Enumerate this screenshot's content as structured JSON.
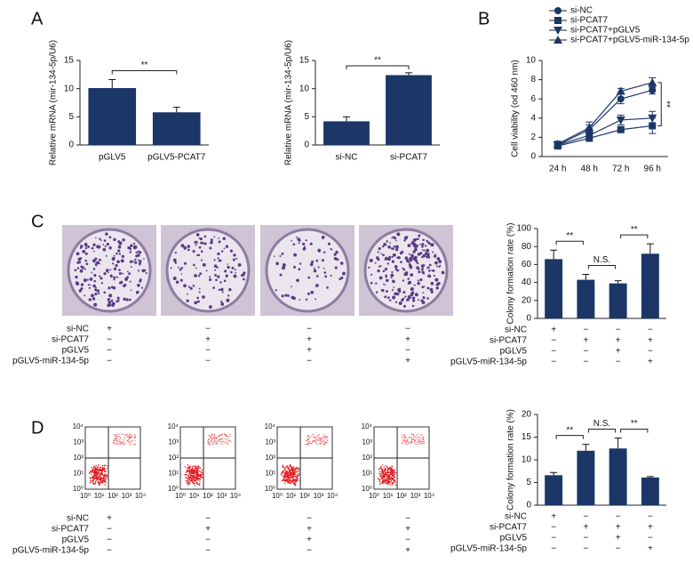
{
  "panel_labels": [
    "A",
    "B",
    "C",
    "D"
  ],
  "flow_axis_ticks": [
    "10⁰",
    "10¹",
    "10²",
    "10³",
    "10⁴"
  ],
  "image_conditions": [
    {
      "labels": [
        "si-NC",
        "si-PCAT7",
        "pGLV5",
        "pGLV5-miR-134-5p"
      ],
      "signs": [
        [
          "+",
          "−",
          "−",
          "−"
        ],
        [
          "−",
          "+",
          "+",
          "+"
        ],
        [
          "−",
          "−",
          "+",
          "−"
        ],
        [
          "−",
          "−",
          "−",
          "+"
        ]
      ]
    },
    {
      "labels": [
        "si-NC",
        "si-PCAT7",
        "pGLV5",
        "pGLV5-miR-134-5p"
      ],
      "signs": [
        [
          "+",
          "−",
          "−",
          "−"
        ],
        [
          "−",
          "+",
          "+",
          "+"
        ],
        [
          "−",
          "−",
          "+",
          "−"
        ],
        [
          "−",
          "−",
          "−",
          "+"
        ]
      ]
    }
  ],
  "chart_data": [
    {
      "type": "bar",
      "ylabel": "Relative mRNA (mir-134-5p/U6)",
      "categories": [
        "pGLV5",
        "pGLV5-PCAT7"
      ],
      "values": [
        10.1,
        5.8
      ],
      "errors": [
        1.5,
        0.9
      ],
      "color": "#1b3667",
      "ylim": [
        0,
        15
      ],
      "yticks": [
        0,
        5,
        10,
        15
      ],
      "annotations": [
        {
          "text": "**",
          "between": [
            0,
            1
          ]
        }
      ]
    },
    {
      "type": "bar",
      "ylabel": "Relative mRNA (mir-134-5p/U6)",
      "categories": [
        "si-NC",
        "si-PCAT7"
      ],
      "values": [
        4.2,
        12.4
      ],
      "errors": [
        0.8,
        0.4
      ],
      "color": "#1b3667",
      "ylim": [
        0,
        15
      ],
      "yticks": [
        0,
        5,
        10,
        15
      ],
      "annotations": [
        {
          "text": "**",
          "between": [
            0,
            1
          ]
        }
      ]
    },
    {
      "type": "line",
      "ylabel": "Cell viability (od 460 nm)",
      "categories": [
        "24 h",
        "48 h",
        "72 h",
        "96 h"
      ],
      "series": [
        {
          "name": "si-NC",
          "marker": "circle",
          "color": "#1b3667",
          "values": [
            1.2,
            2.8,
            6.0,
            6.9
          ],
          "errors": [
            0.3,
            0.5,
            0.5,
            0.4
          ]
        },
        {
          "name": "si-PCAT7",
          "marker": "square",
          "color": "#1b3667",
          "values": [
            1.1,
            1.9,
            2.8,
            3.2
          ],
          "errors": [
            0.2,
            0.2,
            0.3,
            0.8
          ]
        },
        {
          "name": "si-PCAT7+pGLV5",
          "marker": "triangle-down",
          "color": "#1b3667",
          "values": [
            1.2,
            2.2,
            3.8,
            4.0
          ],
          "errors": [
            0.2,
            0.3,
            0.5,
            0.7
          ]
        },
        {
          "name": "si-PCAT7+pGLV5-miR-134-5p",
          "marker": "triangle-up",
          "color": "#1b3667",
          "values": [
            1.3,
            3.0,
            6.8,
            7.7
          ],
          "errors": [
            0.3,
            0.6,
            0.3,
            0.5
          ]
        }
      ],
      "ylim": [
        0,
        10
      ],
      "yticks": [
        0,
        2,
        4,
        6,
        8,
        10
      ],
      "annotations": [
        {
          "text": "**",
          "between": [
            1,
            3
          ]
        }
      ]
    },
    {
      "type": "bar",
      "ylabel": "Colony formation rate (%)",
      "values": [
        66,
        43,
        39,
        72
      ],
      "errors": [
        10,
        6,
        3,
        11
      ],
      "color": "#1b3667",
      "ylim": [
        0,
        100
      ],
      "yticks": [
        0,
        20,
        40,
        60,
        80,
        100
      ],
      "annotations": [
        {
          "text": "**",
          "between": [
            0,
            1
          ]
        },
        {
          "text": "N.S.",
          "between": [
            1,
            2
          ]
        },
        {
          "text": "**",
          "between": [
            2,
            3
          ]
        }
      ],
      "conditions": {
        "labels": [
          "si-NC",
          "si-PCAT7",
          "pGLV5",
          "pGLV5-miR-134-5p"
        ],
        "signs": [
          [
            "+",
            "−",
            "−",
            "−"
          ],
          [
            "−",
            "+",
            "+",
            "+"
          ],
          [
            "−",
            "−",
            "+",
            "−"
          ],
          [
            "−",
            "−",
            "−",
            "+"
          ]
        ]
      }
    },
    {
      "type": "bar",
      "ylabel": "Colony formation rate (%)",
      "values": [
        6.6,
        12.0,
        12.5,
        6.1
      ],
      "errors": [
        0.6,
        1.4,
        2.3,
        0.2
      ],
      "color": "#1b3667",
      "ylim": [
        0,
        20
      ],
      "yticks": [
        0,
        5,
        10,
        15,
        20
      ],
      "annotations": [
        {
          "text": "**",
          "between": [
            0,
            1
          ]
        },
        {
          "text": "N.S.",
          "between": [
            1,
            2
          ]
        },
        {
          "text": "**",
          "between": [
            2,
            3
          ]
        }
      ],
      "conditions": {
        "labels": [
          "si-NC",
          "si-PCAT7",
          "pGLV5",
          "pGLV5-miR-134-5p"
        ],
        "signs": [
          [
            "+",
            "−",
            "−",
            "−"
          ],
          [
            "−",
            "+",
            "+",
            "+"
          ],
          [
            "−",
            "−",
            "+",
            "−"
          ],
          [
            "−",
            "−",
            "−",
            "+"
          ]
        ]
      }
    }
  ]
}
